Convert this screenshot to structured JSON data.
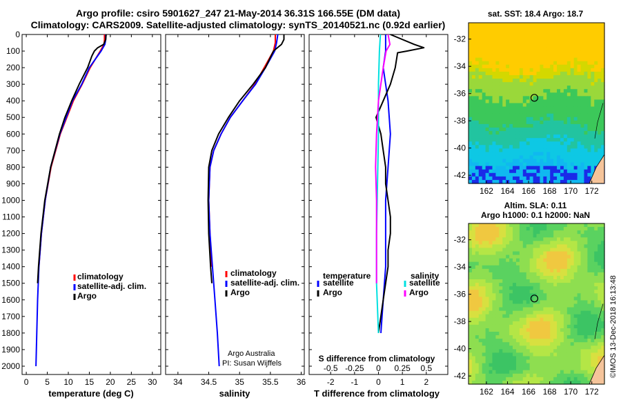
{
  "title": {
    "line1": "Argo profile: csiro 5901627_247 21-May-2014 36.31S 166.55E (DM data)",
    "line2": "Climatology: CARS2009. Satellite-adjusted climatology: synTS_20140521.nc (0.92d earlier)"
  },
  "colors": {
    "climatology": "#ff0000",
    "satellite": "#0000ff",
    "argo": "#000000",
    "sat_salinity": "#00e0e0",
    "argo_salinity": "#ff00ff"
  },
  "depth_ticks": [
    "0",
    "100",
    "200",
    "300",
    "400",
    "500",
    "600",
    "700",
    "800",
    "900",
    "1000",
    "1100",
    "1200",
    "1300",
    "1400",
    "1500",
    "1600",
    "1700",
    "1800",
    "1900",
    "2000"
  ],
  "chart_data": [
    {
      "type": "line",
      "name": "temperature",
      "xlabel": "temperature (deg C)",
      "xticks": [
        "0",
        "5",
        "10",
        "15",
        "20",
        "25",
        "30"
      ],
      "xlim": [
        -1,
        32
      ],
      "ylim": [
        2050,
        0
      ],
      "legend": [
        "climatology",
        "satellite-adj. clim.",
        "Argo"
      ],
      "series": [
        {
          "name": "climatology",
          "depth": [
            0,
            30,
            60,
            100,
            200,
            300,
            400,
            600,
            800,
            1000,
            1200,
            1400
          ],
          "values": [
            18.6,
            18.6,
            18.5,
            17.6,
            15.2,
            13.3,
            11.2,
            8.1,
            5.9,
            4.5,
            3.6,
            3.0
          ]
        },
        {
          "name": "satellite-adj. clim.",
          "depth": [
            0,
            30,
            60,
            100,
            200,
            300,
            400,
            600,
            800,
            1000,
            1200,
            1400,
            1600,
            1800,
            2000
          ],
          "values": [
            18.9,
            18.9,
            18.7,
            17.8,
            15.0,
            13.2,
            11.0,
            8.0,
            5.8,
            4.5,
            3.6,
            3.0,
            2.7,
            2.5,
            2.3
          ]
        },
        {
          "name": "Argo",
          "depth": [
            0,
            30,
            60,
            80,
            100,
            130,
            200,
            300,
            400,
            500,
            600,
            800,
            1000,
            1200,
            1400,
            1500
          ],
          "values": [
            19.0,
            18.9,
            18.4,
            17.0,
            16.2,
            15.6,
            14.6,
            12.6,
            10.8,
            9.2,
            7.9,
            5.8,
            4.4,
            3.5,
            2.9,
            2.7
          ]
        }
      ]
    },
    {
      "type": "line",
      "name": "salinity",
      "xlabel": "salinity",
      "xticks": [
        "34",
        "34.5",
        "35",
        "35.5",
        "36"
      ],
      "xlim": [
        33.8,
        36.05
      ],
      "ylim": [
        2050,
        0
      ],
      "legend": [
        "climatology",
        "satellite-adj. clim.",
        "Argo"
      ],
      "note1": "Argo Australia",
      "note2": "PI: Susan Wijffels",
      "series": [
        {
          "name": "climatology",
          "depth": [
            0,
            50,
            100,
            200,
            300,
            400,
            500,
            600,
            700,
            800,
            1000,
            1200,
            1400
          ],
          "values": [
            35.58,
            35.58,
            35.55,
            35.4,
            35.25,
            35.05,
            34.85,
            34.7,
            34.58,
            34.52,
            34.5,
            34.52,
            34.55
          ]
        },
        {
          "name": "satellite-adj. clim.",
          "depth": [
            0,
            50,
            100,
            200,
            300,
            400,
            500,
            600,
            700,
            800,
            1000,
            1200,
            1400,
            1600,
            1800,
            2000
          ],
          "values": [
            35.62,
            35.6,
            35.57,
            35.42,
            35.26,
            35.05,
            34.85,
            34.7,
            34.58,
            34.52,
            34.5,
            34.52,
            34.56,
            34.6,
            34.64,
            34.67
          ]
        },
        {
          "name": "Argo",
          "depth": [
            0,
            30,
            60,
            100,
            200,
            300,
            400,
            500,
            600,
            700,
            800,
            1000,
            1200,
            1400,
            1500
          ],
          "values": [
            35.72,
            35.72,
            35.68,
            35.55,
            35.42,
            35.22,
            35.0,
            34.82,
            34.66,
            34.55,
            34.5,
            34.49,
            34.5,
            34.53,
            34.55
          ]
        }
      ]
    },
    {
      "type": "line",
      "name": "difference",
      "xlabel": "T difference from climatology",
      "xticks": [
        "-2",
        "-1",
        "0",
        "1",
        "2"
      ],
      "xlim": [
        -2.9,
        2.9
      ],
      "top_xlabel": "S difference from climatology",
      "top_xticks": [
        "-0.5",
        "-0.25",
        "0",
        "0.25",
        "0.5"
      ],
      "ylim": [
        2050,
        0
      ],
      "legend_temperature": [
        "temperature",
        "satellite",
        "Argo"
      ],
      "legend_salinity": [
        "salinity",
        "satellite",
        "Argo"
      ],
      "series": [
        {
          "name": "T satellite",
          "depth": [
            0,
            100,
            200,
            400,
            600,
            800,
            1000,
            1200,
            1400,
            1600,
            1800
          ],
          "values": [
            0.3,
            0.3,
            0.2,
            0.4,
            0.5,
            0.4,
            0.3,
            0.3,
            0.3,
            0.2,
            0.1
          ]
        },
        {
          "name": "T Argo",
          "depth": [
            0,
            60,
            80,
            100,
            110,
            200,
            300,
            400,
            500,
            600,
            700,
            800,
            900,
            1000,
            1100,
            1200,
            1300,
            1400,
            1500,
            1600,
            1700,
            1800
          ],
          "values": [
            0.5,
            1.5,
            1.9,
            1.2,
            0.8,
            0.7,
            0.5,
            0.2,
            -0.1,
            0.1,
            0.2,
            0.3,
            0.3,
            0.4,
            0.5,
            0.5,
            0.4,
            0.4,
            0.3,
            0.2,
            0.1,
            0.0
          ]
        },
        {
          "name": "S satellite",
          "depth": [
            0,
            100,
            300,
            600,
            900,
            1200,
            1500,
            1800
          ],
          "values": [
            0.02,
            0.01,
            0.0,
            0.0,
            -0.01,
            -0.02,
            -0.02,
            0.0
          ]
        },
        {
          "name": "S Argo",
          "depth": [
            0,
            60,
            100,
            200,
            400,
            600,
            800,
            1000,
            1200,
            1400,
            1500
          ],
          "values": [
            0.1,
            0.12,
            0.08,
            0.05,
            0.0,
            -0.02,
            -0.03,
            -0.02,
            -0.02,
            -0.02,
            -0.02
          ]
        }
      ]
    },
    {
      "type": "heatmap",
      "name": "sst-map",
      "title": "sat. SST: 18.4 Argo: 18.7",
      "xticks": [
        "162",
        "164",
        "166",
        "168",
        "170",
        "172"
      ],
      "yticks": [
        "-32",
        "-34",
        "-36",
        "-38",
        "-40",
        "-42"
      ],
      "xlim": [
        160.3,
        173.2
      ],
      "ylim": [
        -42.6,
        -30.8
      ],
      "marker": [
        166.55,
        -36.31
      ]
    },
    {
      "type": "heatmap",
      "name": "sla-map",
      "title1": "Altim. SLA: 0.11",
      "title2": "Argo h1000: 0.1 h2000: NaN",
      "xticks": [
        "162",
        "164",
        "166",
        "168",
        "170",
        "172"
      ],
      "yticks": [
        "-32",
        "-34",
        "-36",
        "-38",
        "-40",
        "-42"
      ],
      "xlim": [
        160.3,
        173.2
      ],
      "ylim": [
        -42.6,
        -30.8
      ],
      "marker": [
        166.55,
        -36.31
      ]
    }
  ],
  "side_label": "©IMOS 13-Dec-2018 16:13:48"
}
